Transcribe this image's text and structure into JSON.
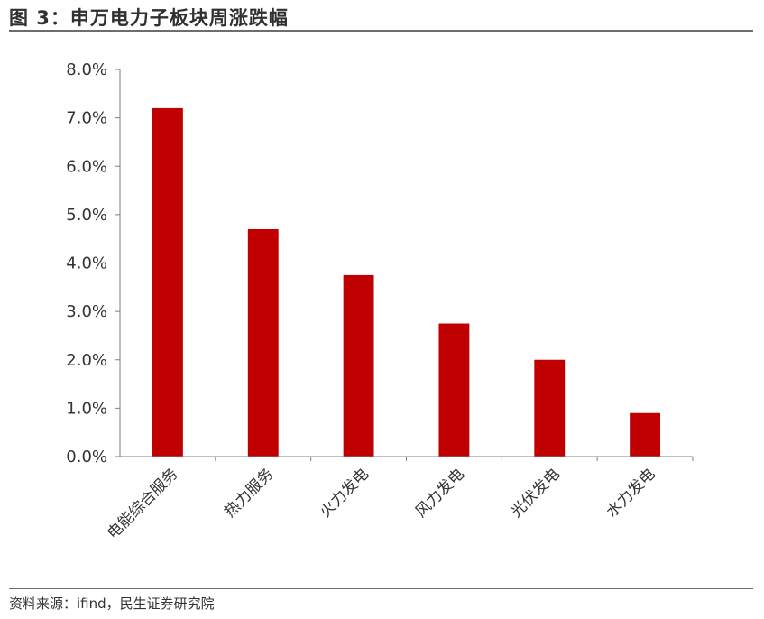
{
  "header": {
    "title": "图 3：申万电力子板块周涨跌幅"
  },
  "footer": {
    "source": "资料来源：ifind，民生证券研究院"
  },
  "chart_data": {
    "type": "bar",
    "title": "图 3：申万电力子板块周涨跌幅",
    "categories": [
      "电能综合服务",
      "热力服务",
      "火力发电",
      "风力发电",
      "光伏发电",
      "水力发电"
    ],
    "series": [
      {
        "values": [
          7.2,
          4.7,
          3.75,
          2.75,
          2.0,
          0.9
        ]
      }
    ],
    "ylim": [
      0,
      8
    ],
    "yticks": [
      "0.0%",
      "1.0%",
      "2.0%",
      "3.0%",
      "4.0%",
      "5.0%",
      "6.0%",
      "7.0%",
      "8.0%"
    ],
    "ytick_values": [
      0,
      1,
      2,
      3,
      4,
      5,
      6,
      7,
      8
    ],
    "bar_color": "#c00000",
    "grid": false,
    "legend": "none"
  }
}
